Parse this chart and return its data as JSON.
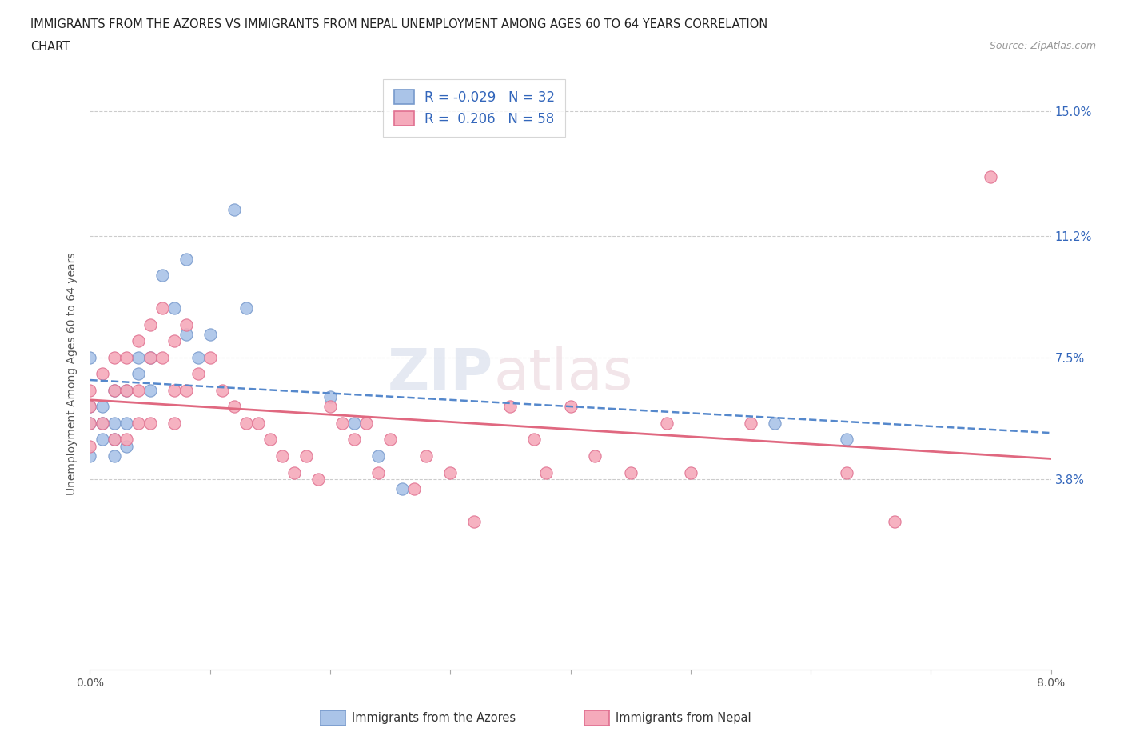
{
  "title_line1": "IMMIGRANTS FROM THE AZORES VS IMMIGRANTS FROM NEPAL UNEMPLOYMENT AMONG AGES 60 TO 64 YEARS CORRELATION",
  "title_line2": "CHART",
  "source": "Source: ZipAtlas.com",
  "ylabel": "Unemployment Among Ages 60 to 64 years",
  "xlim": [
    0.0,
    0.08
  ],
  "ylim": [
    -0.02,
    0.16
  ],
  "xticks": [
    0.0,
    0.01,
    0.02,
    0.03,
    0.04,
    0.05,
    0.06,
    0.07,
    0.08
  ],
  "xticklabels": [
    "0.0%",
    "",
    "",
    "",
    "",
    "",
    "",
    "",
    "8.0%"
  ],
  "ytick_positions": [
    0.038,
    0.075,
    0.112,
    0.15
  ],
  "ytick_labels": [
    "3.8%",
    "7.5%",
    "11.2%",
    "15.0%"
  ],
  "color_azores": "#aac4e8",
  "color_nepal": "#f5aabb",
  "edge_color_azores": "#7799cc",
  "edge_color_nepal": "#e07090",
  "line_color_azores": "#5588cc",
  "line_color_nepal": "#e06880",
  "R_azores": -0.029,
  "N_azores": 32,
  "R_nepal": 0.206,
  "N_nepal": 58,
  "legend_label_azores": "Immigrants from the Azores",
  "legend_label_nepal": "Immigrants from Nepal",
  "watermark": "ZIPatlas",
  "azores_x": [
    0.0,
    0.0,
    0.0,
    0.0,
    0.001,
    0.001,
    0.001,
    0.002,
    0.002,
    0.002,
    0.002,
    0.003,
    0.003,
    0.003,
    0.004,
    0.004,
    0.005,
    0.005,
    0.006,
    0.007,
    0.008,
    0.008,
    0.009,
    0.01,
    0.012,
    0.013,
    0.02,
    0.022,
    0.024,
    0.026,
    0.057,
    0.063
  ],
  "azores_y": [
    0.075,
    0.06,
    0.055,
    0.045,
    0.06,
    0.055,
    0.05,
    0.065,
    0.055,
    0.05,
    0.045,
    0.065,
    0.055,
    0.048,
    0.075,
    0.07,
    0.075,
    0.065,
    0.1,
    0.09,
    0.105,
    0.082,
    0.075,
    0.082,
    0.12,
    0.09,
    0.063,
    0.055,
    0.045,
    0.035,
    0.055,
    0.05
  ],
  "nepal_x": [
    0.0,
    0.0,
    0.0,
    0.0,
    0.001,
    0.001,
    0.002,
    0.002,
    0.002,
    0.003,
    0.003,
    0.003,
    0.004,
    0.004,
    0.004,
    0.005,
    0.005,
    0.005,
    0.006,
    0.006,
    0.007,
    0.007,
    0.007,
    0.008,
    0.008,
    0.009,
    0.01,
    0.011,
    0.012,
    0.013,
    0.014,
    0.015,
    0.016,
    0.017,
    0.018,
    0.019,
    0.02,
    0.021,
    0.022,
    0.023,
    0.024,
    0.025,
    0.027,
    0.028,
    0.03,
    0.032,
    0.035,
    0.037,
    0.038,
    0.04,
    0.042,
    0.045,
    0.048,
    0.05,
    0.055,
    0.063,
    0.067,
    0.075
  ],
  "nepal_y": [
    0.065,
    0.06,
    0.055,
    0.048,
    0.07,
    0.055,
    0.075,
    0.065,
    0.05,
    0.075,
    0.065,
    0.05,
    0.08,
    0.065,
    0.055,
    0.085,
    0.075,
    0.055,
    0.09,
    0.075,
    0.08,
    0.065,
    0.055,
    0.085,
    0.065,
    0.07,
    0.075,
    0.065,
    0.06,
    0.055,
    0.055,
    0.05,
    0.045,
    0.04,
    0.045,
    0.038,
    0.06,
    0.055,
    0.05,
    0.055,
    0.04,
    0.05,
    0.035,
    0.045,
    0.04,
    0.025,
    0.06,
    0.05,
    0.04,
    0.06,
    0.045,
    0.04,
    0.055,
    0.04,
    0.055,
    0.04,
    0.025,
    0.13
  ]
}
